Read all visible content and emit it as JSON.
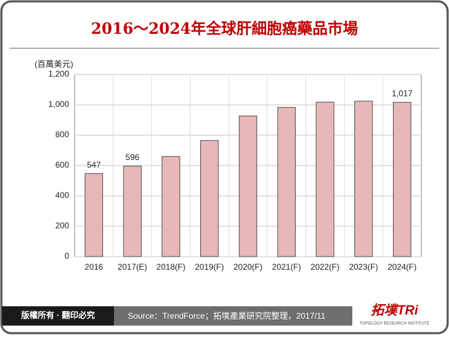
{
  "chart_data": {
    "type": "bar",
    "title": "2016～2024年全球肝細胞癌藥品市場",
    "y_label": "(百萬美元)",
    "categories": [
      "2016",
      "2017(E)",
      "2018(F)",
      "2019(F)",
      "2020(F)",
      "2021(F)",
      "2022(F)",
      "2023(F)",
      "2024(F)"
    ],
    "values": [
      547,
      596,
      660,
      765,
      927,
      983,
      1018,
      1024,
      1017
    ],
    "value_labels": [
      "547",
      "596",
      null,
      null,
      null,
      null,
      null,
      null,
      "1,017"
    ],
    "color": "#e8b7b7",
    "ylim": [
      0,
      1200
    ],
    "yticks": [
      0,
      200,
      400,
      600,
      800,
      {
        "value": 1000,
        "label": "1,000"
      },
      {
        "value": 1200,
        "label": "1,200"
      }
    ],
    "grid": true
  },
  "footer": {
    "copyright": "版權所有 · 翻印必究",
    "source": "Source：TrendForce；拓墣產業研究院整理，2017/11"
  },
  "logo": {
    "name": "拓墣TRi",
    "subtitle": "TOPOLOGY RESEARCH INSTITUTE"
  }
}
